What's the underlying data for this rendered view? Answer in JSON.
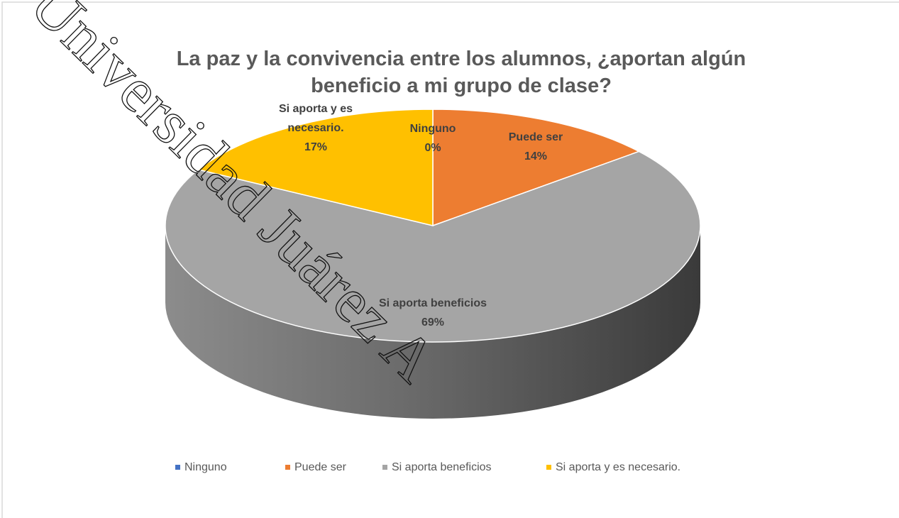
{
  "chart_data": {
    "type": "pie",
    "title": "La paz y la convivencia entre los alumnos, ¿aportan algún beneficio a mi grupo de clase?",
    "categories": [
      "Ninguno",
      "Puede ser",
      "Si aporta beneficios",
      "Si aporta y es necesario."
    ],
    "values": [
      0,
      14,
      69,
      17
    ],
    "value_labels": [
      "0%",
      "14%",
      "69%",
      "17%"
    ],
    "colors": [
      "#4472c4",
      "#ed7d31",
      "#a5a5a5",
      "#ffc000"
    ],
    "legend": "bottom"
  },
  "watermark": "Universidad Juárez A"
}
